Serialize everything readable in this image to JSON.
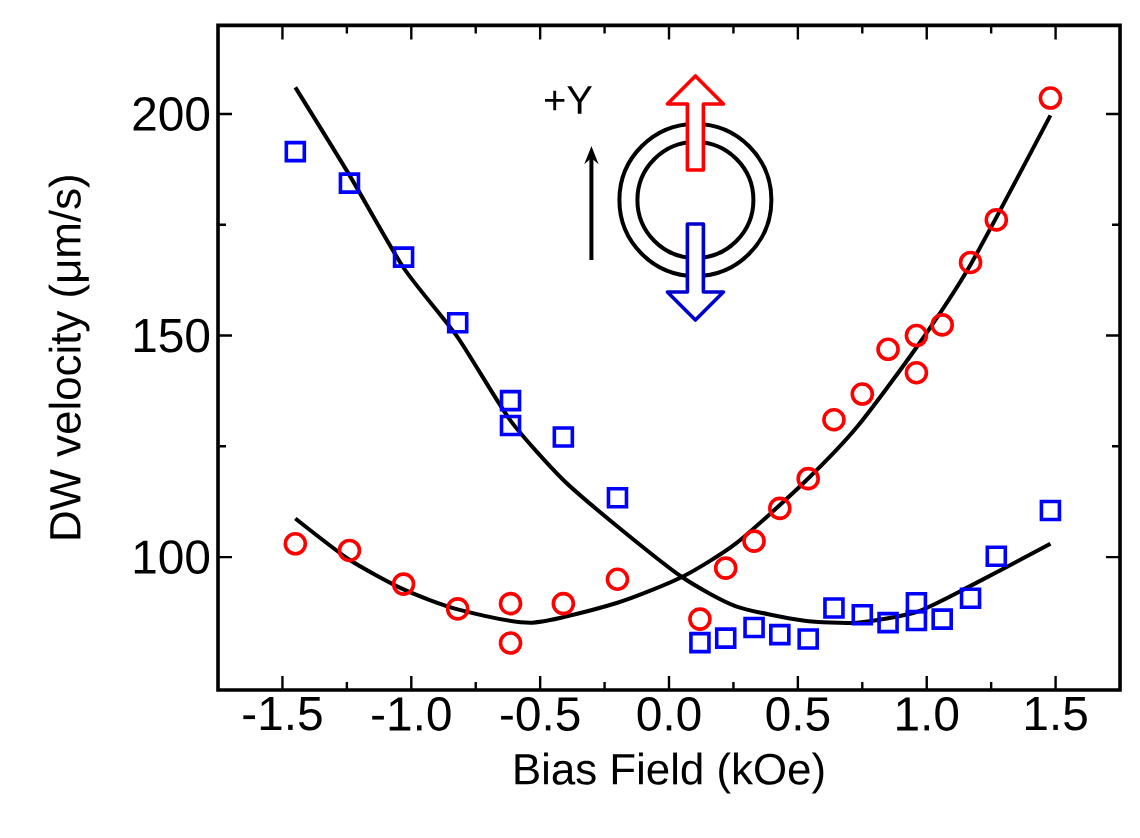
{
  "chart_data": {
    "type": "scatter",
    "xlabel": "Bias Field (kOe)",
    "ylabel": "DW velocity (μm/s)",
    "xlim": [
      -1.75,
      1.75
    ],
    "ylim": [
      70,
      220
    ],
    "xticks": [
      -1.5,
      {
        "value": -1.0,
        "label": "-1.0"
      },
      -0.5,
      {
        "value": 0,
        "label": "0.0"
      },
      0.5,
      {
        "value": 1.0,
        "label": "1.0"
      },
      1.5
    ],
    "yticks": [
      100,
      150,
      200
    ],
    "annotations": [
      "+Y"
    ],
    "series": [
      {
        "type": "scatter",
        "marker": "square",
        "color": "#0000ff",
        "x": [
          -1.45,
          -1.24,
          -1.03,
          -0.82,
          -0.615,
          -0.615,
          -0.41,
          -0.2,
          0.12,
          0.22,
          0.33,
          0.43,
          0.54,
          0.64,
          0.75,
          0.85,
          0.96,
          0.96,
          1.06,
          1.17,
          1.27,
          1.48
        ],
        "values": [
          191.5,
          184.4,
          167.7,
          152.9,
          135.3,
          129.7,
          127.1,
          113.4,
          80.7,
          81.7,
          84.1,
          82.5,
          81.5,
          88.5,
          87,
          85.2,
          89.7,
          85.7,
          86,
          90.7,
          100.2,
          110.5
        ]
      },
      {
        "type": "scatter",
        "marker": "circle",
        "color": "#ff0000",
        "x": [
          -1.45,
          -1.24,
          -1.03,
          -0.82,
          -0.615,
          -0.615,
          -0.41,
          -0.2,
          0.12,
          0.22,
          0.33,
          0.43,
          0.54,
          0.64,
          0.75,
          0.85,
          0.96,
          0.96,
          1.06,
          1.17,
          1.27,
          1.48
        ],
        "values": [
          103,
          101.5,
          93.9,
          88.3,
          89.5,
          80.6,
          89.5,
          95,
          86,
          97.5,
          103.6,
          111,
          117.7,
          131,
          136.8,
          146.9,
          150,
          141.6,
          152.4,
          166.5,
          176.1,
          203.6
        ]
      },
      {
        "type": "line",
        "marker": "none",
        "color": "#000000",
        "x": [
          -1.45,
          -1.24,
          -1.03,
          -0.82,
          -0.615,
          -0.41,
          -0.2,
          0.05,
          0.26,
          0.52,
          0.73,
          0.96,
          1.17,
          1.48
        ],
        "values": [
          206,
          186.2,
          165.3,
          149.6,
          130.8,
          117.4,
          106.9,
          95.5,
          88.9,
          85.7,
          85.2,
          87.6,
          93.5,
          103
        ]
      },
      {
        "type": "line",
        "marker": "none",
        "color": "#000000",
        "x": [
          -1.45,
          -1.24,
          -1.03,
          -0.82,
          -0.53,
          -0.2,
          0.05,
          0.26,
          0.52,
          0.73,
          0.96,
          1.17,
          1.48
        ],
        "values": [
          108.7,
          99.4,
          92.7,
          88.2,
          85.2,
          89.7,
          95.5,
          103.1,
          116.6,
          129.4,
          147.3,
          166,
          199.7
        ]
      }
    ]
  }
}
